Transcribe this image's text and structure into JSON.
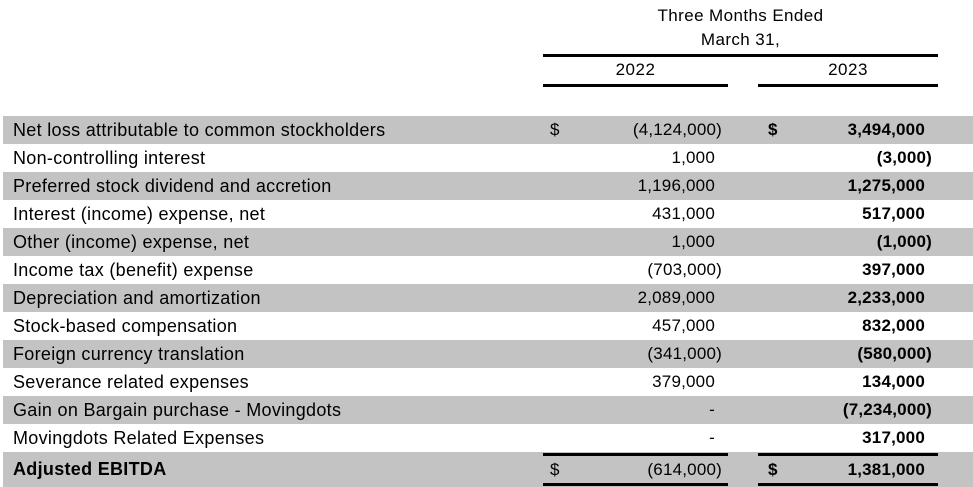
{
  "header": {
    "period_line1": "Three Months Ended",
    "period_line2": "March 31,",
    "col_2022": "2022",
    "col_2023": "2023"
  },
  "colors": {
    "row_stripe": "#c3c3c3",
    "rule": "#000000",
    "text": "#000000"
  },
  "table": {
    "rows": [
      {
        "label": "Net loss attributable to common stockholders",
        "d2022": "$",
        "v2022": "(4,124,000)",
        "d2023": "$",
        "v2023": "3,494,000"
      },
      {
        "label": "Non-controlling interest",
        "v2022": "1,000",
        "v2023": "(3,000)"
      },
      {
        "label": "Preferred stock dividend and accretion",
        "v2022": "1,196,000",
        "v2023": "1,275,000"
      },
      {
        "label": "Interest (income) expense, net",
        "v2022": "431,000",
        "v2023": "517,000"
      },
      {
        "label": "Other (income) expense, net",
        "v2022": "1,000",
        "v2023": "(1,000)"
      },
      {
        "label": "Income tax (benefit) expense",
        "v2022": "(703,000)",
        "v2023": "397,000"
      },
      {
        "label": "Depreciation and amortization",
        "v2022": "2,089,000",
        "v2023": "2,233,000"
      },
      {
        "label": "Stock-based compensation",
        "v2022": "457,000",
        "v2023": "832,000"
      },
      {
        "label": "Foreign currency translation",
        "v2022": "(341,000)",
        "v2023": "(580,000)"
      },
      {
        "label": "Severance related expenses",
        "v2022": "379,000",
        "v2023": "134,000"
      },
      {
        "label": "Gain on Bargain purchase - Movingdots",
        "v2022": "-",
        "v2023": "(7,234,000)"
      },
      {
        "label": "Movingdots Related Expenses",
        "v2022": "-",
        "v2023": "317,000"
      },
      {
        "label": "Adjusted EBITDA",
        "d2022": "$",
        "v2022": "(614,000)",
        "d2023": "$",
        "v2023": "1,381,000"
      }
    ]
  }
}
